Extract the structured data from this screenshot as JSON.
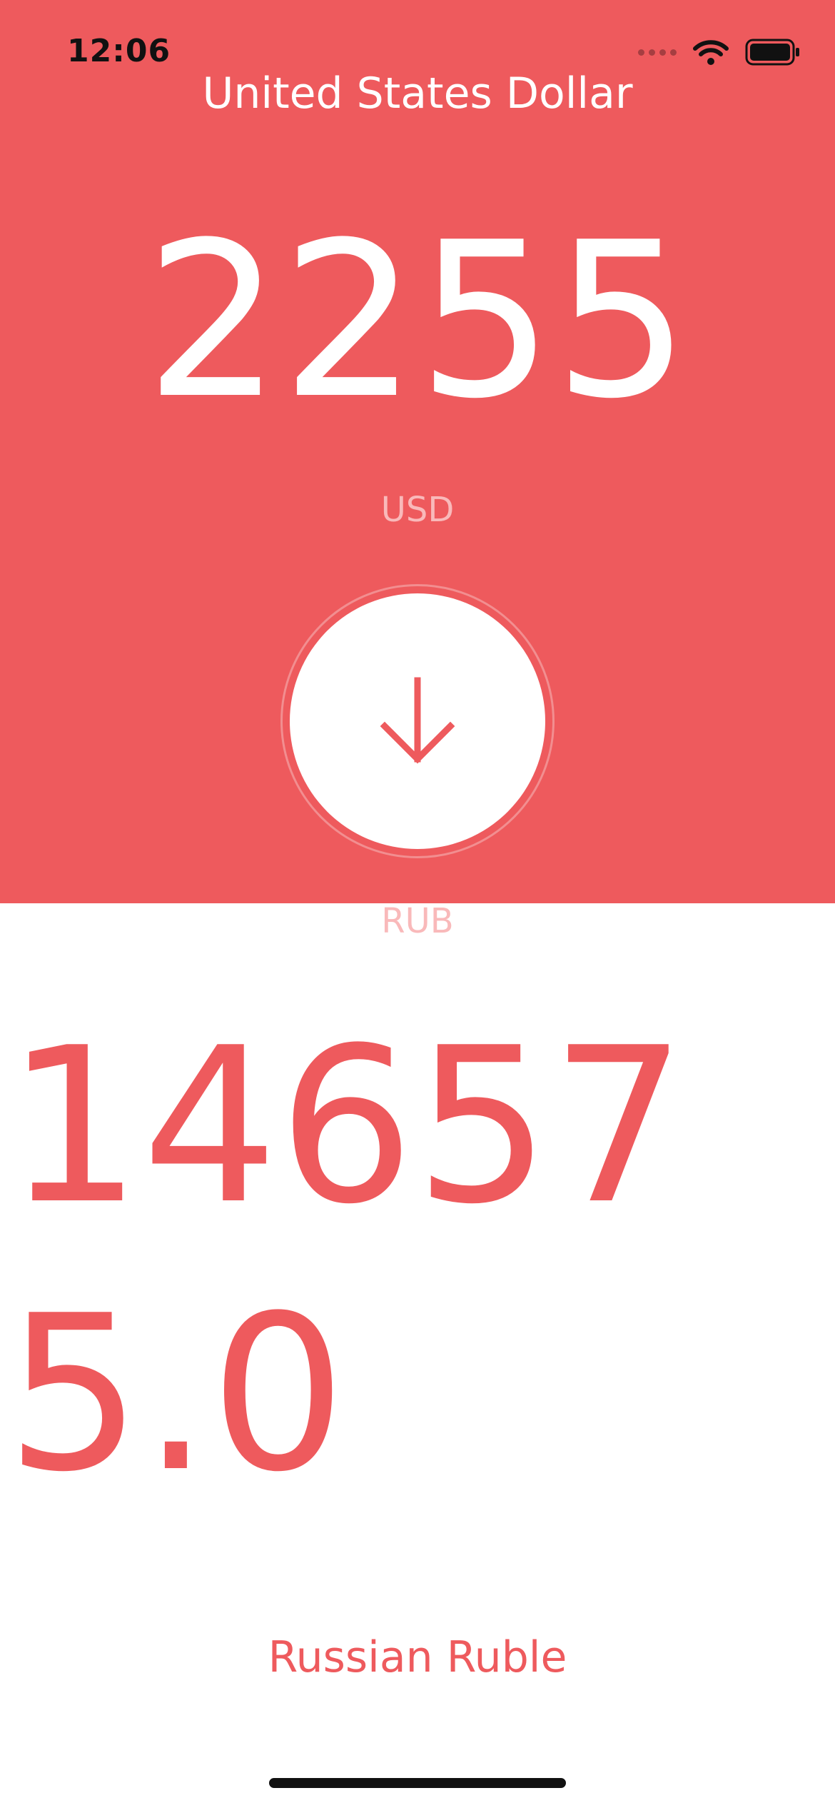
{
  "status_bar": {
    "time": "12:06",
    "icons": [
      "signal-dots-icon",
      "wifi-icon",
      "battery-icon"
    ]
  },
  "source": {
    "currency_name": "United States Dollar",
    "amount": "2255",
    "code": "USD"
  },
  "swap": {
    "icon": "arrow-down-icon"
  },
  "target": {
    "code": "RUB",
    "amount": "146575.0",
    "currency_name": "Russian Ruble"
  },
  "colors": {
    "accent": "#EE5A5D",
    "muted_text": "#F9B9BA",
    "background": "#FFFFFF"
  }
}
